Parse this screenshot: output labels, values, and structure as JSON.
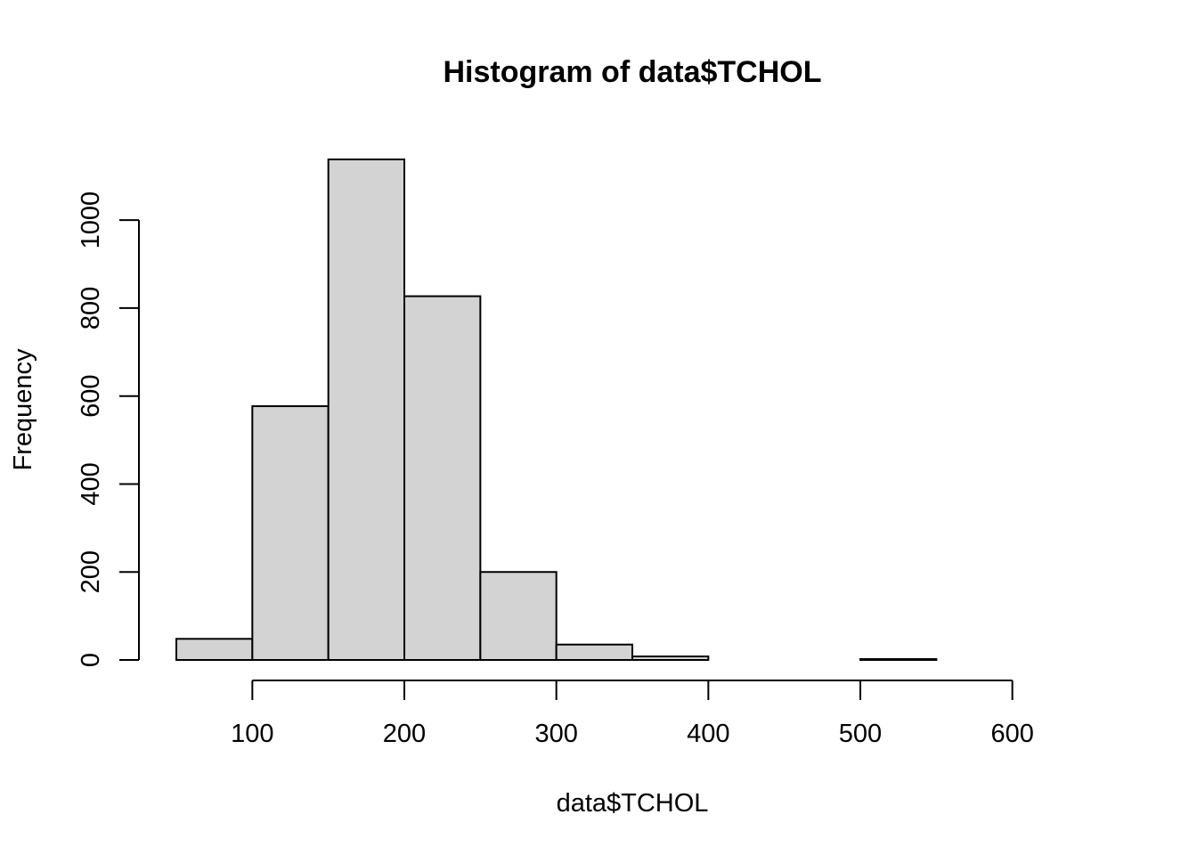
{
  "chart_data": {
    "type": "bar",
    "title": "Histogram of data$TCHOL",
    "xlabel": "data$TCHOL",
    "ylabel": "Frequency",
    "bins": [
      {
        "start": 50,
        "end": 100,
        "count": 48
      },
      {
        "start": 100,
        "end": 150,
        "count": 577
      },
      {
        "start": 150,
        "end": 200,
        "count": 1138
      },
      {
        "start": 200,
        "end": 250,
        "count": 827
      },
      {
        "start": 250,
        "end": 300,
        "count": 200
      },
      {
        "start": 300,
        "end": 350,
        "count": 35
      },
      {
        "start": 350,
        "end": 400,
        "count": 8
      },
      {
        "start": 400,
        "end": 450,
        "count": 0
      },
      {
        "start": 450,
        "end": 500,
        "count": 0
      },
      {
        "start": 500,
        "end": 550,
        "count": 2
      },
      {
        "start": 550,
        "end": 600,
        "count": 0
      },
      {
        "start": 600,
        "end": 650,
        "count": 0
      }
    ],
    "xlim": [
      50,
      650
    ],
    "ylim": [
      0,
      1138
    ],
    "x_ticks": [
      100,
      200,
      300,
      400,
      500,
      600
    ],
    "y_ticks": [
      0,
      200,
      400,
      600,
      800,
      1000
    ],
    "grid": false,
    "legend": "none",
    "colors": {
      "bar_fill": "#d3d3d3",
      "bar_stroke": "#000000"
    }
  }
}
